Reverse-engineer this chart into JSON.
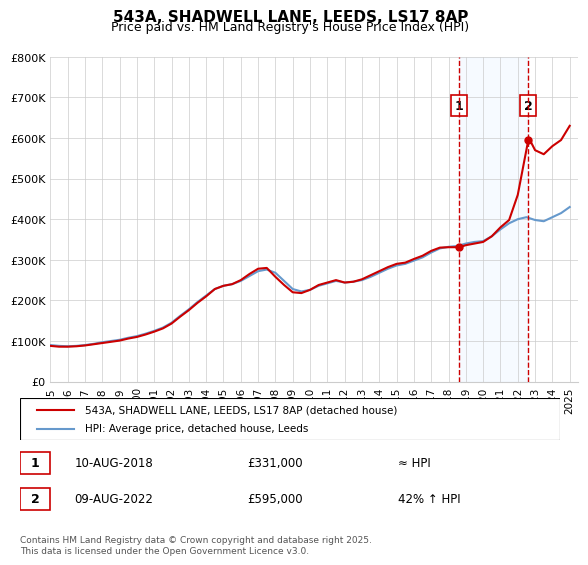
{
  "title": "543A, SHADWELL LANE, LEEDS, LS17 8AP",
  "subtitle": "Price paid vs. HM Land Registry's House Price Index (HPI)",
  "title_fontsize": 11,
  "subtitle_fontsize": 9,
  "background_color": "#ffffff",
  "plot_bg_color": "#ffffff",
  "ylabel": "",
  "xlabel": "",
  "ylim": [
    0,
    800000
  ],
  "yticks": [
    0,
    100000,
    200000,
    300000,
    400000,
    500000,
    600000,
    700000,
    800000
  ],
  "ytick_labels": [
    "£0",
    "£100K",
    "£200K",
    "£300K",
    "£400K",
    "£500K",
    "£600K",
    "£700K",
    "£800K"
  ],
  "xlim_start": 1995.0,
  "xlim_end": 2025.5,
  "hpi_color": "#6699cc",
  "price_color": "#cc0000",
  "sale1_x": 2018.608,
  "sale1_y": 331000,
  "sale2_x": 2022.608,
  "sale2_y": 595000,
  "marker1_label": "1",
  "marker2_label": "2",
  "vline_color": "#cc0000",
  "shade_color": "#ddeeff",
  "legend_label_price": "543A, SHADWELL LANE, LEEDS, LS17 8AP (detached house)",
  "legend_label_hpi": "HPI: Average price, detached house, Leeds",
  "table_row1_num": "1",
  "table_row1_date": "10-AUG-2018",
  "table_row1_price": "£331,000",
  "table_row1_hpi": "≈ HPI",
  "table_row2_num": "2",
  "table_row2_date": "09-AUG-2022",
  "table_row2_price": "£595,000",
  "table_row2_hpi": "42% ↑ HPI",
  "footnote": "Contains HM Land Registry data © Crown copyright and database right 2025.\nThis data is licensed under the Open Government Licence v3.0.",
  "hpi_data_x": [
    1995.0,
    1995.5,
    1996.0,
    1996.5,
    1997.0,
    1997.5,
    1998.0,
    1998.5,
    1999.0,
    1999.5,
    2000.0,
    2000.5,
    2001.0,
    2001.5,
    2002.0,
    2002.5,
    2003.0,
    2003.5,
    2004.0,
    2004.5,
    2005.0,
    2005.5,
    2006.0,
    2006.5,
    2007.0,
    2007.5,
    2008.0,
    2008.5,
    2009.0,
    2009.5,
    2010.0,
    2010.5,
    2011.0,
    2011.5,
    2012.0,
    2012.5,
    2013.0,
    2013.5,
    2014.0,
    2014.5,
    2015.0,
    2015.5,
    2016.0,
    2016.5,
    2017.0,
    2017.5,
    2018.0,
    2018.5,
    2019.0,
    2019.5,
    2020.0,
    2020.5,
    2021.0,
    2021.5,
    2022.0,
    2022.5,
    2023.0,
    2023.5,
    2024.0,
    2024.5,
    2025.0
  ],
  "hpi_data_y": [
    90000,
    88000,
    87000,
    88000,
    90000,
    93000,
    97000,
    100000,
    103000,
    108000,
    112000,
    118000,
    125000,
    133000,
    145000,
    162000,
    178000,
    196000,
    212000,
    228000,
    236000,
    240000,
    248000,
    260000,
    272000,
    276000,
    268000,
    248000,
    228000,
    222000,
    226000,
    236000,
    242000,
    248000,
    244000,
    246000,
    250000,
    258000,
    268000,
    278000,
    286000,
    290000,
    298000,
    306000,
    318000,
    328000,
    332000,
    334000,
    340000,
    344000,
    346000,
    358000,
    375000,
    390000,
    400000,
    405000,
    398000,
    395000,
    405000,
    415000,
    430000
  ],
  "price_data_x": [
    1995.0,
    1995.5,
    1996.0,
    1996.5,
    1997.0,
    1997.5,
    1998.0,
    1998.5,
    1999.0,
    1999.5,
    2000.0,
    2000.5,
    2001.0,
    2001.5,
    2002.0,
    2002.5,
    2003.0,
    2003.5,
    2004.0,
    2004.5,
    2005.0,
    2005.5,
    2006.0,
    2006.5,
    2007.0,
    2007.5,
    2008.0,
    2008.5,
    2009.0,
    2009.5,
    2010.0,
    2010.5,
    2011.0,
    2011.5,
    2012.0,
    2012.5,
    2013.0,
    2013.5,
    2014.0,
    2014.5,
    2015.0,
    2015.5,
    2016.0,
    2016.5,
    2017.0,
    2017.5,
    2018.0,
    2018.608,
    2018.7,
    2019.0,
    2019.5,
    2020.0,
    2020.5,
    2021.0,
    2021.5,
    2022.0,
    2022.608,
    2022.7,
    2023.0,
    2023.5,
    2024.0,
    2024.5,
    2025.0
  ],
  "price_data_y": [
    88000,
    86000,
    86000,
    87000,
    89000,
    92000,
    95000,
    98000,
    101000,
    106000,
    110000,
    116000,
    123000,
    131000,
    143000,
    160000,
    176000,
    194000,
    210000,
    228000,
    236000,
    240000,
    250000,
    265000,
    278000,
    280000,
    258000,
    238000,
    220000,
    218000,
    226000,
    238000,
    244000,
    250000,
    244000,
    246000,
    252000,
    262000,
    272000,
    282000,
    290000,
    293000,
    302000,
    310000,
    322000,
    330000,
    331000,
    331000,
    332000,
    336000,
    340000,
    344000,
    358000,
    380000,
    398000,
    460000,
    595000,
    595000,
    570000,
    560000,
    580000,
    595000,
    630000
  ]
}
